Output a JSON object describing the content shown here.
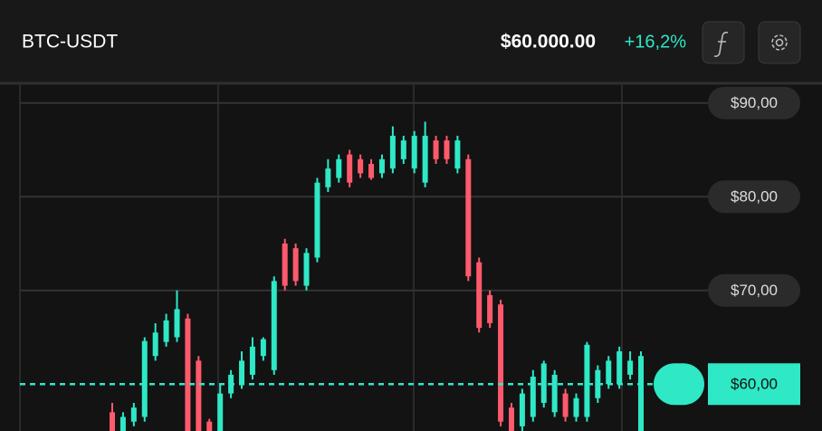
{
  "chart_data": {
    "type": "candlestick",
    "title": "BTC-USDT",
    "price": "$60.000.00",
    "change": "+16,2%",
    "up_color": "#2ee8c6",
    "down_color": "#ff5a6c",
    "open": [
      57,
      55,
      56,
      56.5,
      63,
      64.5,
      65,
      67,
      62.5,
      56,
      55,
      59,
      60,
      61,
      63,
      61.5,
      75,
      74.5,
      70.5,
      73.5,
      81,
      82,
      84.5,
      84,
      83.5,
      82.5,
      83,
      84,
      83,
      81.5,
      86,
      86,
      83,
      84,
      73,
      69.5,
      68.5,
      57.5,
      55.5,
      56.5,
      58,
      57,
      59,
      56.5,
      56.5,
      58.5,
      60,
      60,
      61,
      55
    ],
    "close": [
      55,
      56.5,
      57.5,
      64.6,
      65.5,
      66.8,
      68,
      55,
      55,
      55,
      59,
      61,
      62.5,
      64,
      64.8,
      71,
      70.5,
      71,
      74,
      81.5,
      83,
      84,
      81.5,
      82.5,
      82,
      84,
      86.5,
      86,
      86.5,
      86.5,
      84,
      84,
      86,
      71.5,
      66,
      66.5,
      56,
      55,
      59,
      60.8,
      62.2,
      61,
      56.5,
      58.5,
      64.2,
      61.5,
      62.5,
      63.5,
      62.5,
      63
    ],
    "high": [
      58,
      57,
      58,
      65,
      66.5,
      67.5,
      70,
      67.5,
      63,
      56.3,
      60,
      61.5,
      63.5,
      65,
      65,
      71.5,
      75.5,
      75,
      74.5,
      82,
      84,
      84.5,
      85,
      84.5,
      84,
      84.5,
      87.5,
      86.5,
      87,
      88,
      86.5,
      86.5,
      86.5,
      84.5,
      73.5,
      70,
      69,
      58,
      59.5,
      61.5,
      62.5,
      61.5,
      59.5,
      59,
      64.5,
      62,
      63,
      64,
      63.5,
      63.5
    ],
    "low": [
      55,
      55,
      55.5,
      56,
      62.5,
      64,
      64.5,
      55,
      55,
      55,
      55,
      58.5,
      59.5,
      60.5,
      62.5,
      61,
      70,
      70.5,
      70,
      73,
      80.5,
      81.5,
      81,
      82,
      81.8,
      82,
      82.5,
      83.5,
      82.5,
      81,
      83.5,
      83.5,
      82.5,
      71,
      65.5,
      66,
      55.5,
      55,
      55,
      56,
      57.5,
      56.5,
      56,
      56,
      56,
      58,
      59.5,
      59.5,
      60.5,
      55
    ],
    "ylim": [
      55,
      92
    ],
    "yticks": [
      {
        "value": 70,
        "label": "$70,00"
      },
      {
        "value": 80,
        "label": "$80,00"
      },
      {
        "value": 90,
        "label": "$90,00"
      }
    ],
    "price_line": {
      "value": 60,
      "label": "$60,00"
    },
    "grid": true
  }
}
